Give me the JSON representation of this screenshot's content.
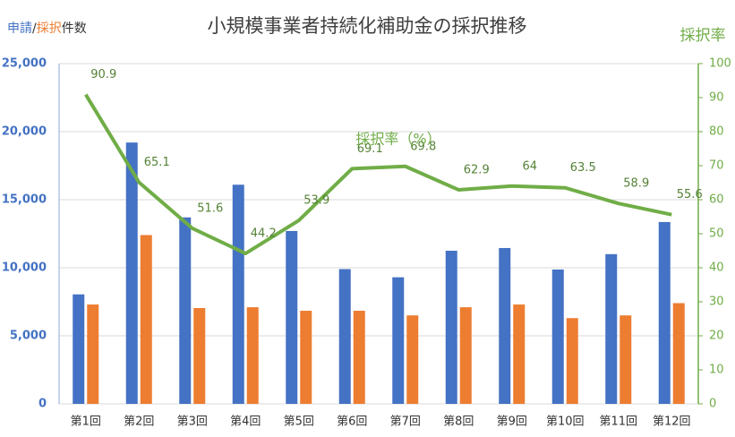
{
  "chart_data": {
    "type": "bar-line",
    "title": "小規模事業者持続化補助金の採択推移",
    "ylabel": [
      "申請",
      "/",
      "採択",
      "件数"
    ],
    "y2label": "採択率",
    "annotation": "採択率（%）",
    "categories": [
      "第1回",
      "第2回",
      "第3回",
      "第4回",
      "第5回",
      "第6回",
      "第7回",
      "第8回",
      "第9回",
      "第10回",
      "第11回",
      "第12回"
    ],
    "series": [
      {
        "type": "bar",
        "color": "#4472c4",
        "values": [
          8044,
          19200,
          13700,
          16100,
          12700,
          9900,
          9300,
          11250,
          11450,
          9870,
          11000,
          13360
        ]
      },
      {
        "type": "bar",
        "color": "#ed7d31",
        "values": [
          7300,
          12400,
          7040,
          7100,
          6840,
          6840,
          6500,
          7100,
          7300,
          6300,
          6500,
          7400
        ]
      },
      {
        "type": "line",
        "axis": "y2",
        "color": "#70ad47",
        "values": [
          90.9,
          65.1,
          51.6,
          44.2,
          53.9,
          69.1,
          69.8,
          62.9,
          64,
          63.5,
          58.9,
          55.6
        ]
      }
    ],
    "ylim": [
      0,
      25000
    ],
    "yticks": [
      0,
      {
        "value": 5000,
        "label": "5,000"
      },
      {
        "value": 10000,
        "label": "10,000"
      },
      {
        "value": 15000,
        "label": "15,000"
      },
      {
        "value": 20000,
        "label": "20,000"
      },
      {
        "value": 25000,
        "label": "25,000"
      }
    ],
    "y2lim": [
      0,
      100
    ],
    "y2ticks": [
      0,
      10,
      20,
      30,
      40,
      50,
      60,
      70,
      80,
      90,
      100
    ],
    "grid": true
  }
}
